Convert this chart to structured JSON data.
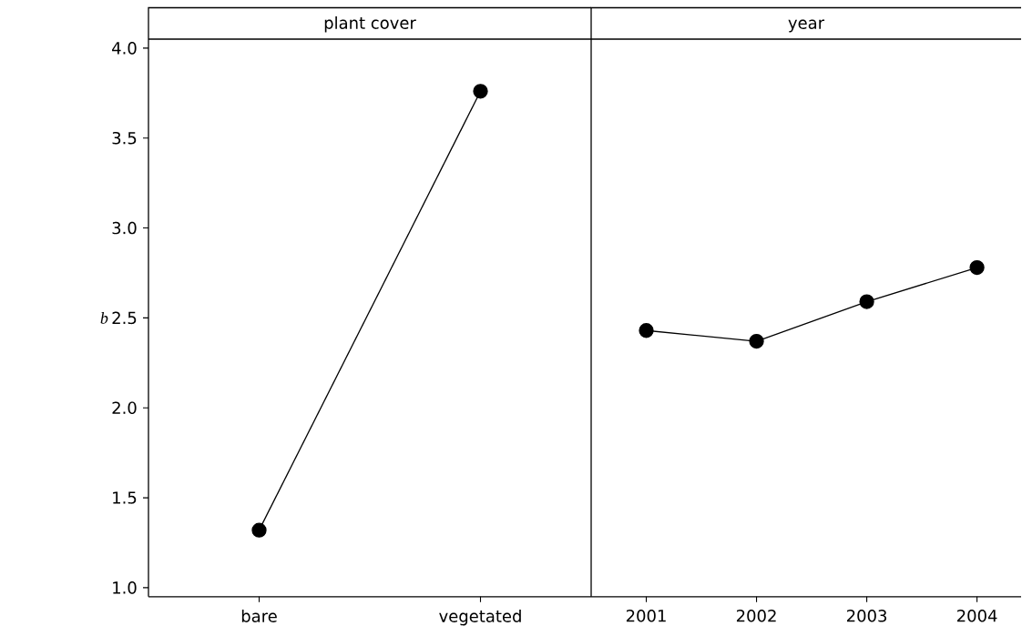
{
  "chart_data": [
    {
      "type": "line",
      "title": "plant cover",
      "ylabel": "b",
      "categories": [
        "bare",
        "vegetated"
      ],
      "values": [
        1.32,
        3.76
      ],
      "color": "#000000",
      "marker": "circle",
      "ylim": [
        0.95,
        4.05
      ],
      "yticks": [
        {
          "value": 1.0,
          "label": "1.0"
        },
        {
          "value": 1.5,
          "label": "1.5"
        },
        {
          "value": 2.0,
          "label": "2.0"
        },
        {
          "value": 2.5,
          "label": "2.5"
        },
        {
          "value": 3.0,
          "label": "3.0"
        },
        {
          "value": 3.5,
          "label": "3.5"
        },
        {
          "value": 4.0,
          "label": "4.0"
        }
      ]
    },
    {
      "type": "line",
      "title": "year",
      "categories": [
        "2001",
        "2002",
        "2003",
        "2004"
      ],
      "values": [
        2.43,
        2.37,
        2.59,
        2.78
      ],
      "color": "#000000",
      "marker": "circle",
      "ylim": [
        0.95,
        4.05
      ],
      "tick_labels": "x"
    }
  ]
}
